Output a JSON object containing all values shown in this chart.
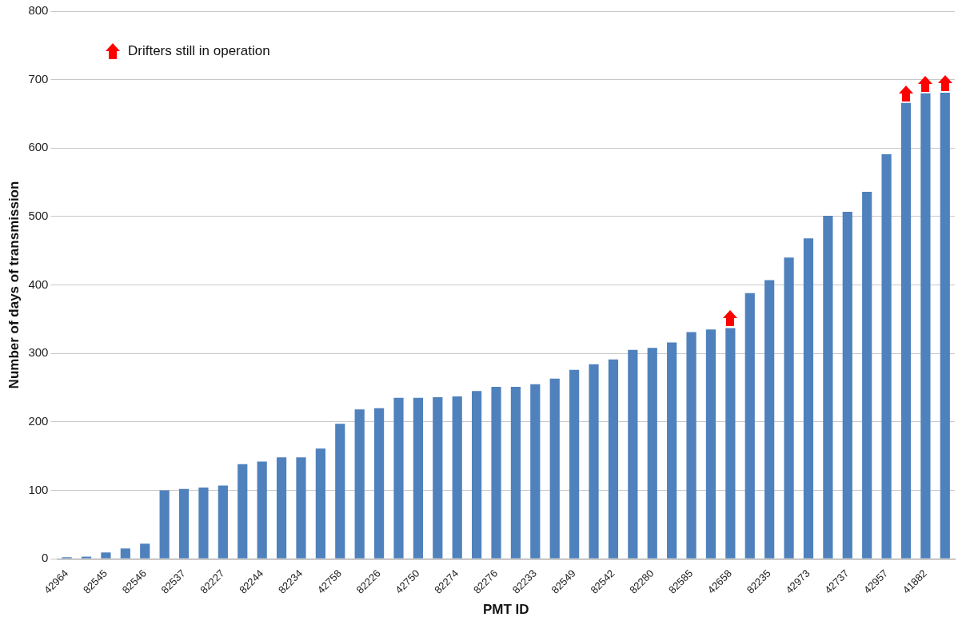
{
  "chart_data": {
    "type": "bar",
    "xlabel": "PMT ID",
    "ylabel": "Number of days of transmission",
    "categories": [
      "42964",
      null,
      "82545",
      null,
      "82546",
      null,
      "82537",
      null,
      "82227",
      null,
      "82244",
      null,
      "82234",
      null,
      "42758",
      null,
      "82226",
      null,
      "42750",
      null,
      "82274",
      null,
      "82276",
      null,
      "82233",
      null,
      "82549",
      null,
      "82542",
      null,
      "82280",
      null,
      "82585",
      null,
      "42658",
      null,
      "82235",
      null,
      "42973",
      null,
      "42737",
      null,
      "42957",
      null,
      "41882",
      null
    ],
    "values": [
      2,
      3,
      9,
      15,
      22,
      100,
      102,
      104,
      107,
      138,
      142,
      148,
      148,
      161,
      197,
      218,
      220,
      235,
      235,
      236,
      237,
      245,
      251,
      251,
      255,
      263,
      276,
      284,
      291,
      305,
      308,
      316,
      331,
      335,
      337,
      388,
      407,
      440,
      468,
      501,
      507,
      536,
      591,
      666,
      680,
      681
    ],
    "color": "#4f81bd",
    "ylim": [
      0,
      800
    ],
    "yticks": [
      0,
      100,
      200,
      300,
      400,
      500,
      600,
      700,
      800
    ],
    "grid": "y",
    "annotations": [
      "Drifters still in operation"
    ],
    "legend": false
  }
}
